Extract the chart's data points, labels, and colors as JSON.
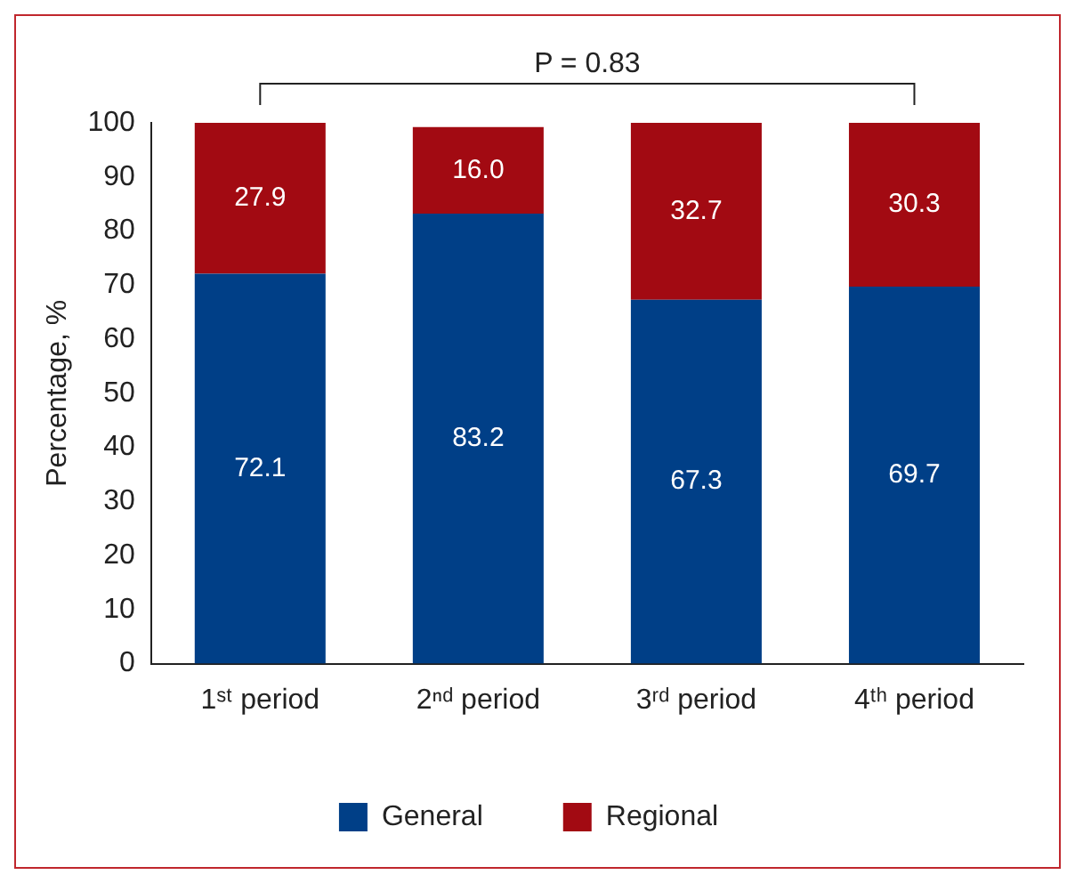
{
  "chart_data": {
    "type": "bar",
    "stacked": true,
    "categories": [
      "1ˢᵗ period",
      "2ⁿᵈ period",
      "3ʳᵈ period",
      "4ᵗʰ period"
    ],
    "series": [
      {
        "name": "General",
        "color": "#003f87",
        "values": [
          72.1,
          83.2,
          67.3,
          69.7
        ],
        "value_labels": [
          "72.1",
          "83.2",
          "67.3",
          "69.7"
        ]
      },
      {
        "name": "Regional",
        "color": "#a20a12",
        "values": [
          27.9,
          16.0,
          32.7,
          30.3
        ],
        "value_labels": [
          "27.9",
          "16.0",
          "32.7",
          "30.3"
        ]
      }
    ],
    "ylabel": "Percentage, %",
    "ylim": [
      0,
      100
    ],
    "yticks": [
      0,
      10,
      20,
      30,
      40,
      50,
      60,
      70,
      80,
      90,
      100
    ],
    "annotations": [
      "P = 0.83"
    ],
    "grid": false,
    "legend": "bottom"
  }
}
